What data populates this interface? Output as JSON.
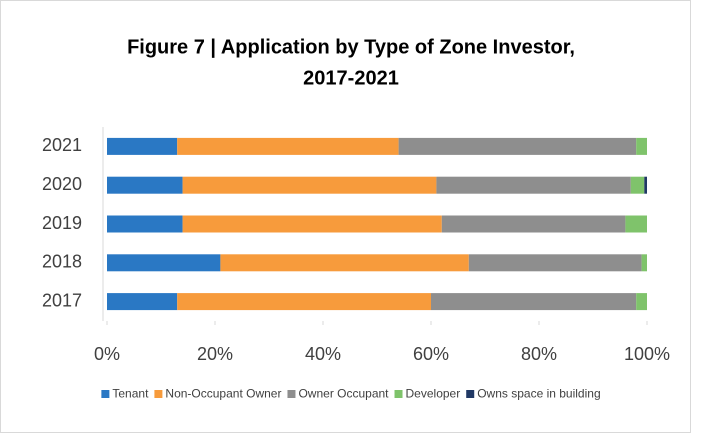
{
  "chart_data": {
    "type": "stacked_barh",
    "title": [
      "Figure 7 | Application by Type of Zone Investor,",
      "2017-2021"
    ],
    "categories": [
      "2021",
      "2020",
      "2019",
      "2018",
      "2017"
    ],
    "series": [
      {
        "name": "Tenant",
        "color": "#2a78c4",
        "values": [
          13,
          14,
          14,
          21,
          13
        ]
      },
      {
        "name": "Non-Occupant Owner",
        "color": "#f79b3c",
        "values": [
          41,
          47,
          48,
          46,
          47
        ]
      },
      {
        "name": "Owner Occupant",
        "color": "#8e8e8e",
        "values": [
          44,
          36,
          34,
          32,
          38
        ]
      },
      {
        "name": "Developer",
        "color": "#7fc36b",
        "values": [
          2,
          2.5,
          4,
          1,
          2
        ]
      },
      {
        "name": "Owns space in building",
        "color": "#203864",
        "values": [
          0,
          0.5,
          0,
          0,
          0
        ]
      }
    ],
    "xlim": [
      0,
      100
    ],
    "xticks": [
      {
        "value": 0,
        "label": "0%"
      },
      {
        "value": 20,
        "label": "20%"
      },
      {
        "value": 40,
        "label": "40%"
      },
      {
        "value": 60,
        "label": "60%"
      },
      {
        "value": 80,
        "label": "80%"
      },
      {
        "value": 100,
        "label": "100%"
      }
    ],
    "grid": false,
    "legend": "bottom"
  }
}
